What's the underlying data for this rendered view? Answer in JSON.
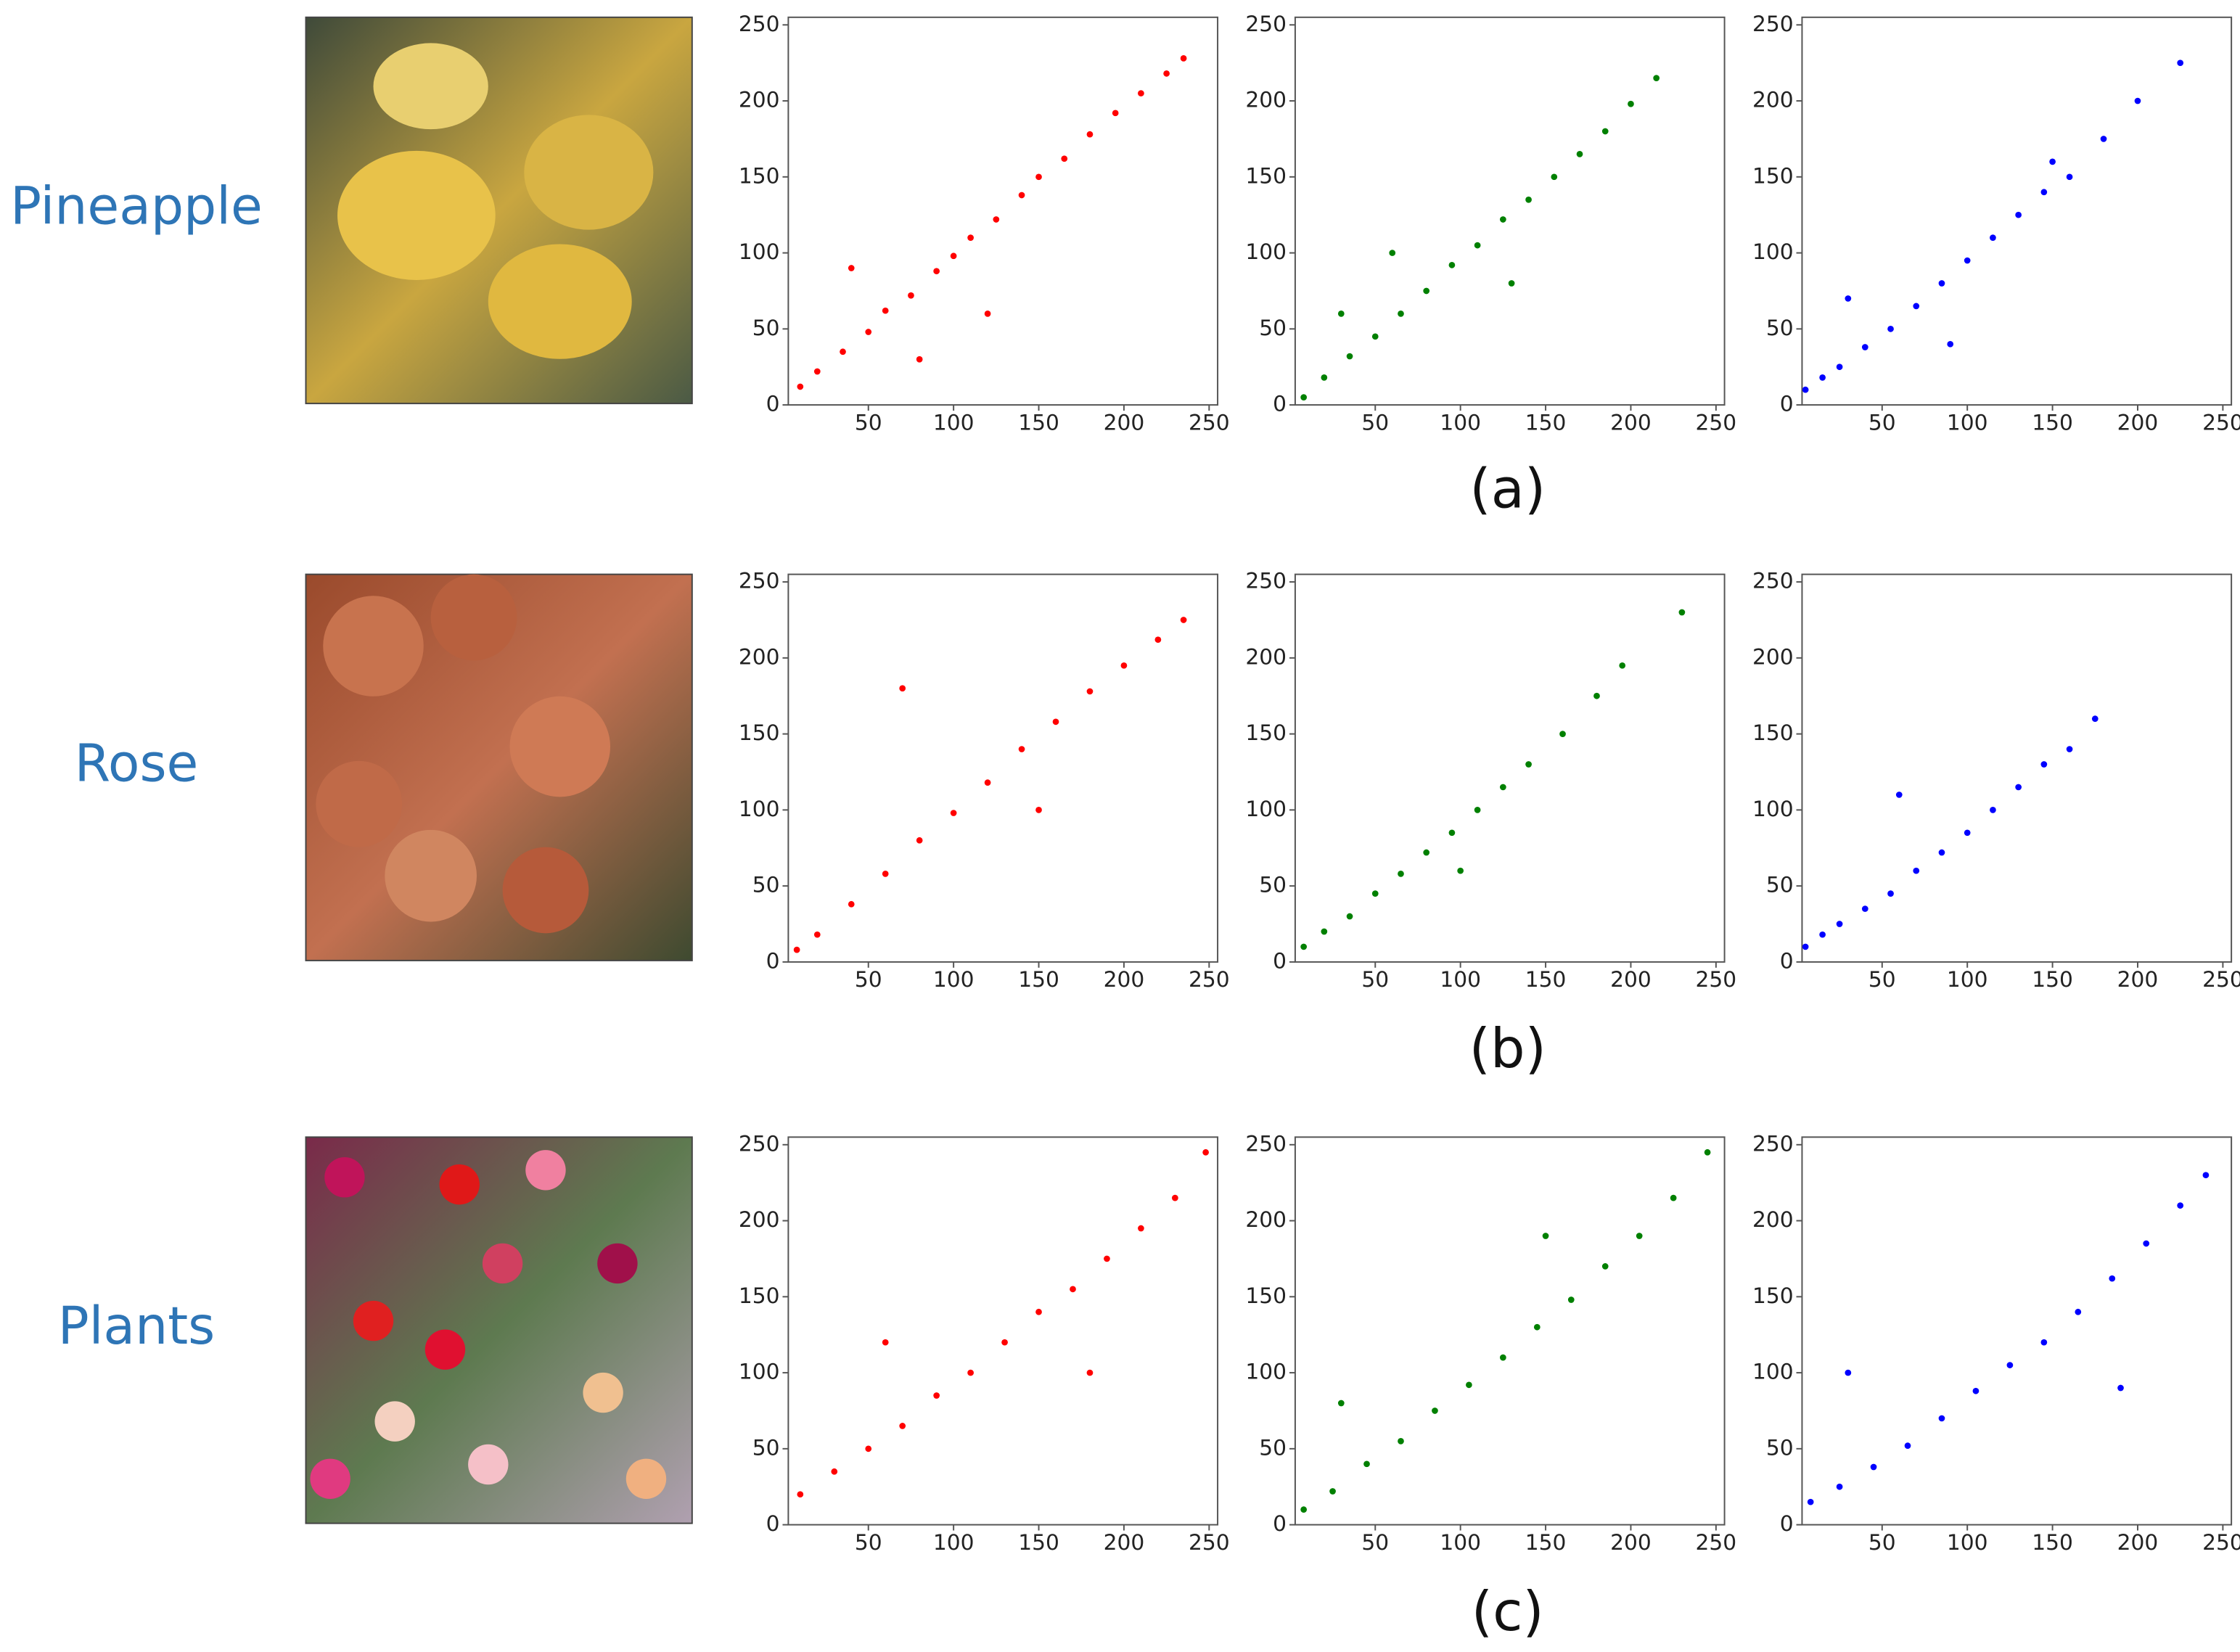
{
  "rows": [
    {
      "label": "Pineapple",
      "caption": "(a)"
    },
    {
      "label": "Rose",
      "caption": "(b)"
    },
    {
      "label": "Plants",
      "caption": "(c)"
    }
  ],
  "chart_data": [
    {
      "type": "scatter",
      "color": "#ff0000",
      "xlim": [
        3,
        255
      ],
      "ylim": [
        0,
        255
      ],
      "xticks": [
        50,
        100,
        150,
        200,
        250
      ],
      "yticks": [
        0,
        50,
        100,
        150,
        200,
        250
      ],
      "x": [
        10,
        20,
        35,
        50,
        60,
        75,
        90,
        100,
        110,
        125,
        140,
        150,
        165,
        180,
        195,
        210,
        225,
        235,
        40,
        120,
        80
      ],
      "values": [
        12,
        22,
        35,
        48,
        62,
        72,
        88,
        98,
        110,
        122,
        138,
        150,
        162,
        178,
        192,
        205,
        218,
        228,
        90,
        60,
        30
      ]
    },
    {
      "type": "scatter",
      "color": "#008000",
      "xlim": [
        3,
        255
      ],
      "ylim": [
        0,
        255
      ],
      "xticks": [
        50,
        100,
        150,
        200,
        250
      ],
      "yticks": [
        0,
        50,
        100,
        150,
        200,
        250
      ],
      "x": [
        8,
        20,
        35,
        50,
        65,
        80,
        95,
        110,
        125,
        140,
        155,
        170,
        185,
        200,
        215,
        60,
        130,
        30
      ],
      "values": [
        5,
        18,
        32,
        45,
        60,
        75,
        92,
        105,
        122,
        135,
        150,
        165,
        180,
        198,
        215,
        100,
        80,
        60
      ]
    },
    {
      "type": "scatter",
      "color": "#0000ff",
      "xlim": [
        3,
        255
      ],
      "ylim": [
        0,
        255
      ],
      "xticks": [
        50,
        100,
        150,
        200,
        250
      ],
      "yticks": [
        0,
        50,
        100,
        150,
        200,
        250
      ],
      "x": [
        5,
        15,
        25,
        40,
        55,
        70,
        85,
        100,
        115,
        130,
        145,
        160,
        180,
        200,
        225,
        30,
        90,
        150
      ],
      "values": [
        10,
        18,
        25,
        38,
        50,
        65,
        80,
        95,
        110,
        125,
        140,
        150,
        175,
        200,
        225,
        70,
        40,
        160
      ]
    },
    {
      "type": "scatter",
      "color": "#ff0000",
      "xlim": [
        3,
        255
      ],
      "ylim": [
        0,
        255
      ],
      "xticks": [
        50,
        100,
        150,
        200,
        250
      ],
      "yticks": [
        0,
        50,
        100,
        150,
        200,
        250
      ],
      "x": [
        8,
        20,
        40,
        60,
        80,
        100,
        120,
        140,
        160,
        180,
        200,
        220,
        235,
        70,
        150
      ],
      "values": [
        8,
        18,
        38,
        58,
        80,
        98,
        118,
        140,
        158,
        178,
        195,
        212,
        225,
        180,
        100
      ]
    },
    {
      "type": "scatter",
      "color": "#008000",
      "xlim": [
        3,
        255
      ],
      "ylim": [
        0,
        255
      ],
      "xticks": [
        50,
        100,
        150,
        200,
        250
      ],
      "yticks": [
        0,
        50,
        100,
        150,
        200,
        250
      ],
      "x": [
        8,
        20,
        35,
        50,
        65,
        80,
        95,
        110,
        125,
        140,
        160,
        180,
        195,
        230,
        100
      ],
      "values": [
        10,
        20,
        30,
        45,
        58,
        72,
        85,
        100,
        115,
        130,
        150,
        175,
        195,
        230,
        60
      ]
    },
    {
      "type": "scatter",
      "color": "#0000ff",
      "xlim": [
        3,
        255
      ],
      "ylim": [
        0,
        255
      ],
      "xticks": [
        50,
        100,
        150,
        200,
        250
      ],
      "yticks": [
        0,
        50,
        100,
        150,
        200,
        250
      ],
      "x": [
        5,
        15,
        25,
        40,
        55,
        70,
        85,
        100,
        115,
        130,
        145,
        160,
        175,
        60
      ],
      "values": [
        10,
        18,
        25,
        35,
        45,
        60,
        72,
        85,
        100,
        115,
        130,
        140,
        160,
        110
      ]
    },
    {
      "type": "scatter",
      "color": "#ff0000",
      "xlim": [
        3,
        255
      ],
      "ylim": [
        0,
        255
      ],
      "xticks": [
        50,
        100,
        150,
        200,
        250
      ],
      "yticks": [
        0,
        50,
        100,
        150,
        200,
        250
      ],
      "x": [
        10,
        30,
        50,
        70,
        90,
        110,
        130,
        150,
        170,
        190,
        210,
        230,
        248,
        60,
        180
      ],
      "values": [
        20,
        35,
        50,
        65,
        85,
        100,
        120,
        140,
        155,
        175,
        195,
        215,
        245,
        120,
        100
      ]
    },
    {
      "type": "scatter",
      "color": "#008000",
      "xlim": [
        3,
        255
      ],
      "ylim": [
        0,
        255
      ],
      "xticks": [
        50,
        100,
        150,
        200,
        250
      ],
      "yticks": [
        0,
        50,
        100,
        150,
        200,
        250
      ],
      "x": [
        8,
        25,
        45,
        65,
        85,
        105,
        125,
        145,
        165,
        185,
        205,
        225,
        245,
        30,
        150
      ],
      "values": [
        10,
        22,
        40,
        55,
        75,
        92,
        110,
        130,
        148,
        170,
        190,
        215,
        245,
        80,
        190
      ]
    },
    {
      "type": "scatter",
      "color": "#0000ff",
      "xlim": [
        3,
        255
      ],
      "ylim": [
        0,
        255
      ],
      "xticks": [
        50,
        100,
        150,
        200,
        250
      ],
      "yticks": [
        0,
        50,
        100,
        150,
        200,
        250
      ],
      "x": [
        8,
        25,
        45,
        65,
        85,
        105,
        125,
        145,
        165,
        185,
        205,
        225,
        240,
        30,
        190
      ],
      "values": [
        15,
        25,
        38,
        52,
        70,
        88,
        105,
        120,
        140,
        162,
        185,
        210,
        230,
        100,
        90
      ]
    }
  ]
}
